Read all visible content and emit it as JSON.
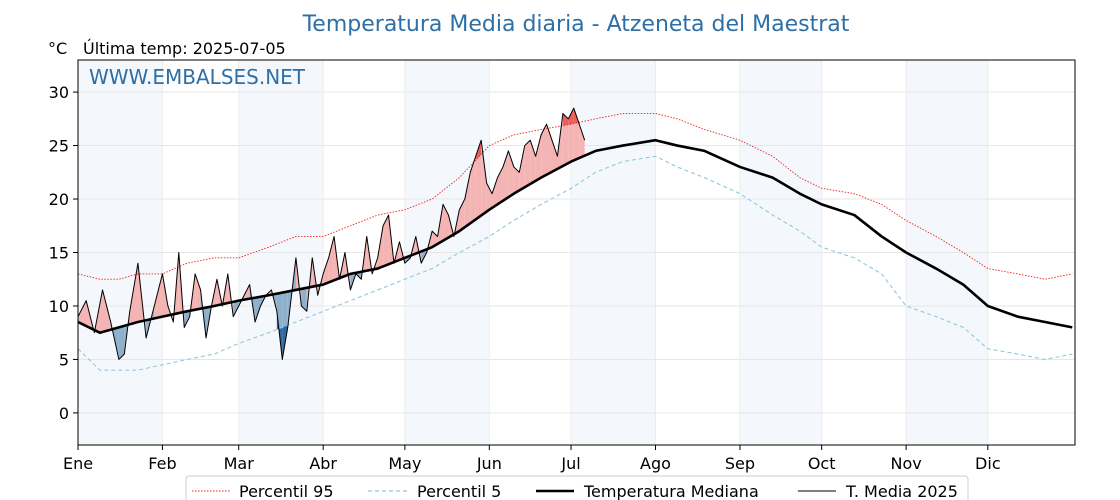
{
  "chart_data": {
    "type": "line",
    "title": "Temperatura Media diaria - Atzeneta del Maestrat",
    "unit_label": "°C",
    "last_temp_label": "Última temp: 2025-07-05",
    "watermark": "WWW.EMBALSES.NET",
    "ylim": [
      -3,
      33
    ],
    "yticks": [
      0,
      5,
      10,
      15,
      20,
      25,
      30
    ],
    "xlim": [
      0,
      366
    ],
    "months": [
      {
        "label": "Ene",
        "day": 0
      },
      {
        "label": "Feb",
        "day": 31
      },
      {
        "label": "Mar",
        "day": 59
      },
      {
        "label": "Abr",
        "day": 90
      },
      {
        "label": "May",
        "day": 120
      },
      {
        "label": "Jun",
        "day": 151
      },
      {
        "label": "Jul",
        "day": 181
      },
      {
        "label": "Ago",
        "day": 212
      },
      {
        "label": "Sep",
        "day": 243
      },
      {
        "label": "Oct",
        "day": 273
      },
      {
        "label": "Nov",
        "day": 304
      },
      {
        "label": "Dic",
        "day": 334
      }
    ],
    "grid": true,
    "legend_position": "bottom",
    "series": [
      {
        "name": "Percentil 95",
        "color": "#e8231e",
        "style": "dotted",
        "x": [
          0,
          8,
          15,
          22,
          31,
          40,
          50,
          59,
          70,
          80,
          90,
          100,
          110,
          120,
          130,
          140,
          151,
          160,
          170,
          181,
          190,
          200,
          212,
          220,
          230,
          243,
          255,
          265,
          273,
          285,
          295,
          304,
          315,
          325,
          334,
          345,
          355,
          365
        ],
        "y": [
          13,
          12.5,
          12.5,
          13,
          13,
          14,
          14.5,
          14.5,
          15.5,
          16.5,
          16.5,
          17.5,
          18.5,
          19,
          20,
          22,
          25,
          26,
          26.5,
          27,
          27.5,
          28,
          28,
          27.5,
          26.5,
          25.5,
          24,
          22,
          21,
          20.5,
          19.5,
          18,
          16.5,
          15,
          13.5,
          13,
          12.5,
          13
        ]
      },
      {
        "name": "Percentil 5",
        "color": "#8fc8dc",
        "style": "dashed",
        "x": [
          0,
          8,
          15,
          22,
          31,
          40,
          50,
          59,
          70,
          80,
          90,
          100,
          110,
          120,
          130,
          140,
          151,
          160,
          170,
          181,
          190,
          200,
          212,
          220,
          230,
          243,
          255,
          265,
          273,
          285,
          295,
          304,
          315,
          325,
          334,
          345,
          355,
          365
        ],
        "y": [
          6,
          4,
          4,
          4,
          4.5,
          5,
          5.5,
          6.5,
          7.5,
          8.5,
          9.5,
          10.5,
          11.5,
          12.5,
          13.5,
          15,
          16.5,
          18,
          19.5,
          21,
          22.5,
          23.5,
          24,
          23,
          22,
          20.5,
          18.5,
          17,
          15.5,
          14.5,
          13,
          10,
          9,
          8,
          6,
          5.5,
          5,
          5.5
        ]
      },
      {
        "name": "Temperatura Mediana",
        "color": "#000000",
        "style": "thick",
        "x": [
          0,
          8,
          15,
          22,
          31,
          40,
          50,
          59,
          70,
          80,
          90,
          100,
          110,
          120,
          130,
          140,
          151,
          160,
          170,
          181,
          190,
          200,
          212,
          220,
          230,
          243,
          255,
          265,
          273,
          285,
          295,
          304,
          315,
          325,
          334,
          345,
          355,
          365
        ],
        "y": [
          8.5,
          7.5,
          8,
          8.5,
          9,
          9.5,
          10,
          10.5,
          11,
          11.5,
          12,
          13,
          13.5,
          14.5,
          15.5,
          17,
          19,
          20.5,
          22,
          23.5,
          24.5,
          25,
          25.5,
          25,
          24.5,
          23,
          22,
          20.5,
          19.5,
          18.5,
          16.5,
          15,
          13.5,
          12,
          10,
          9,
          8.5,
          8
        ]
      },
      {
        "name": "T. Media 2025",
        "color": "#000000",
        "style": "thin",
        "x": [
          0,
          3,
          6,
          9,
          12,
          15,
          17,
          19,
          22,
          25,
          28,
          31,
          33,
          35,
          37,
          39,
          41,
          43,
          45,
          47,
          49,
          51,
          53,
          55,
          57,
          59,
          61,
          63,
          65,
          67,
          69,
          71,
          73,
          75,
          77,
          80,
          82,
          84,
          86,
          88,
          90,
          92,
          94,
          96,
          98,
          100,
          102,
          104,
          106,
          108,
          110,
          112,
          114,
          116,
          118,
          120,
          122,
          124,
          126,
          128,
          130,
          132,
          134,
          136,
          138,
          140,
          142,
          144,
          146,
          148,
          150,
          152,
          154,
          156,
          158,
          160,
          162,
          164,
          166,
          168,
          170,
          172,
          174,
          176,
          178,
          180,
          182,
          184,
          186
        ],
        "y": [
          9,
          10.5,
          7.5,
          11.5,
          8.5,
          5,
          5.5,
          9.5,
          14,
          7,
          10,
          13,
          10,
          8.5,
          15,
          8,
          9,
          13,
          11.5,
          7,
          10,
          12.5,
          10,
          13,
          9,
          10,
          11,
          12,
          8.5,
          10,
          11,
          11.5,
          9.5,
          5,
          8,
          14.5,
          10,
          9.5,
          14.5,
          11,
          13,
          14.5,
          16.5,
          12.5,
          15,
          11.5,
          13,
          12.5,
          16.5,
          13,
          14.5,
          17.5,
          18.5,
          14,
          16,
          14,
          14.5,
          16.5,
          14,
          15,
          17,
          16.5,
          19.5,
          18.5,
          16.5,
          19,
          20,
          22.5,
          24,
          25.5,
          21.5,
          20.5,
          22,
          23,
          24.5,
          23,
          22.5,
          25,
          25.5,
          24,
          26,
          27,
          25.5,
          24,
          28,
          27.5,
          28.5,
          27,
          25.5
        ]
      }
    ]
  },
  "legend": {
    "items": [
      {
        "label": "Percentil 95"
      },
      {
        "label": "Percentil 5"
      },
      {
        "label": "Temperatura Mediana"
      },
      {
        "label": "T. Media 2025"
      }
    ]
  }
}
